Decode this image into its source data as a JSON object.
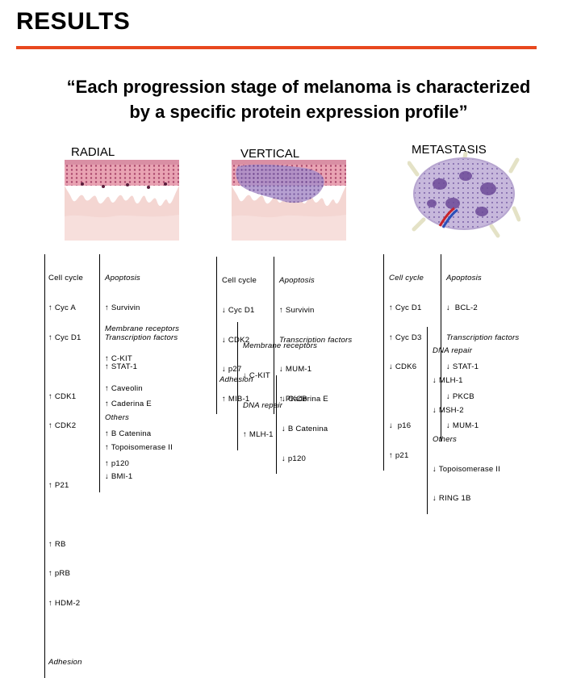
{
  "slide": {
    "title": "RESULTS",
    "accent_color": "#e8481e",
    "quote_line1": "“Each progression stage of melanoma is characterized",
    "quote_line2": "by a specific protein expression profile”"
  },
  "stages": {
    "radial": "RADIAL",
    "vertical": "VERTICAL",
    "metastasis": "METASTASIS"
  },
  "radial": {
    "cellcycle": [
      {
        "text": "Cell cycle",
        "arrow": "",
        "italic": true
      },
      {
        "text": "Cyc A",
        "arrow": "↑"
      },
      {
        "text": "Cyc D1",
        "arrow": "↑"
      },
      {
        "text": "",
        "arrow": ""
      },
      {
        "text": "CDK1",
        "arrow": "↑"
      },
      {
        "text": "CDK2",
        "arrow": "↑"
      },
      {
        "text": "",
        "arrow": ""
      },
      {
        "text": "P21",
        "arrow": "↑"
      },
      {
        "text": "",
        "arrow": ""
      },
      {
        "text": "RB",
        "arrow": "↑"
      },
      {
        "text": "pRB",
        "arrow": "↑"
      },
      {
        "text": "HDM-2",
        "arrow": "↑"
      },
      {
        "text": "",
        "arrow": ""
      },
      {
        "text": "Adhesion",
        "arrow": "",
        "italic": true
      }
    ],
    "apoptosis": [
      {
        "text": "Apoptosis",
        "arrow": "",
        "italic": true
      },
      {
        "text": "Survivin",
        "arrow": "↑"
      },
      {
        "text": "Transcription factors",
        "arrow": "",
        "italic": true
      },
      {
        "text": "STAT-1",
        "arrow": "↑"
      }
    ],
    "membrane": [
      {
        "text": "Membrane receptors",
        "arrow": "",
        "italic": true
      },
      {
        "text": "C-KIT",
        "arrow": "↑"
      },
      {
        "text": "Caveolin",
        "arrow": "↑"
      },
      {
        "text": "Others",
        "arrow": "",
        "italic": true
      },
      {
        "text": "Topoisomerase II",
        "arrow": "↑"
      },
      {
        "text": "BMI-1",
        "arrow": "↓"
      }
    ],
    "adhesion": [
      {
        "text": "Caderina E",
        "arrow": "↑"
      },
      {
        "text": "B Catenina",
        "arrow": "↑"
      },
      {
        "text": "p120",
        "arrow": "↑"
      }
    ]
  },
  "vertical": {
    "cellcycle": [
      {
        "text": "Cell cycle",
        "arrow": ""
      },
      {
        "text": "Cyc D1",
        "arrow": "↓"
      },
      {
        "text": "CDK2",
        "arrow": "↓"
      },
      {
        "text": "p27",
        "arrow": "↓"
      },
      {
        "text": "MIB-1",
        "arrow": "↑"
      }
    ],
    "apoptosis": [
      {
        "text": "Apoptosis",
        "arrow": "",
        "italic": true
      },
      {
        "text": "Survivin",
        "arrow": "↑"
      },
      {
        "text": "Transcription factors",
        "arrow": "",
        "italic": true
      },
      {
        "text": "MUM-1",
        "arrow": "↓"
      },
      {
        "text": "PKCB",
        "arrow": "↑"
      }
    ],
    "membrane": [
      {
        "text": "Membrane receptors",
        "arrow": "",
        "italic": true
      },
      {
        "text": "C-KIT",
        "arrow": "↓"
      },
      {
        "text": "DNA repair",
        "arrow": "",
        "italic": true
      },
      {
        "text": "MLH-1",
        "arrow": "↑"
      }
    ],
    "adhesion_label": "Adhesion",
    "adhesion": [
      {
        "text": "Caderina E",
        "arrow": "↓"
      },
      {
        "text": "B Catenina",
        "arrow": "↓"
      },
      {
        "text": "p120",
        "arrow": "↓"
      }
    ]
  },
  "metastasis": {
    "cellcycle": [
      {
        "text": "Cell cycle",
        "arrow": "",
        "italic": true
      },
      {
        "text": "Cyc D1",
        "arrow": "↑"
      },
      {
        "text": "Cyc D3",
        "arrow": "↑"
      },
      {
        "text": "CDK6",
        "arrow": "↓"
      },
      {
        "text": "",
        "arrow": ""
      },
      {
        "text": "p16",
        "arrow": "↓"
      },
      {
        "text": "p21",
        "arrow": "↑"
      }
    ],
    "apoptosis": [
      {
        "text": "Apoptosis",
        "arrow": "",
        "italic": true
      },
      {
        "text": "BCL-2",
        "arrow": "↓"
      },
      {
        "text": "Transcription factors",
        "arrow": "",
        "italic": true
      },
      {
        "text": "STAT-1",
        "arrow": "↓"
      },
      {
        "text": "PKCB",
        "arrow": "↓"
      },
      {
        "text": "MUM-1",
        "arrow": "↓"
      }
    ],
    "others": [
      {
        "text": "DNA repair",
        "arrow": "",
        "italic": true
      },
      {
        "text": "MLH-1",
        "arrow": "↓"
      },
      {
        "text": "MSH-2",
        "arrow": "↓"
      },
      {
        "text": "Others",
        "arrow": "",
        "italic": true
      },
      {
        "text": "Topoisomerase II",
        "arrow": "↓"
      },
      {
        "text": "RING 1B",
        "arrow": "↓"
      }
    ]
  }
}
